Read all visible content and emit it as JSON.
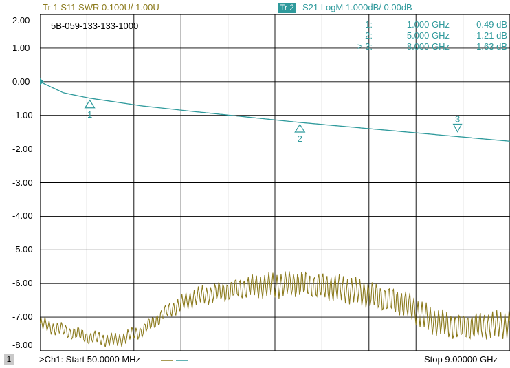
{
  "header": {
    "trace1": "Tr 1  S11 SWR 0.100U/  1.00U",
    "trace2_tag": "Tr 2",
    "trace2": "S21 LogM 1.000dB/  0.00dB"
  },
  "note": "5B-059-133-133-1000",
  "markers": [
    {
      "id": "1:",
      "freq": "1.000 GHz",
      "value": "-0.49 dB"
    },
    {
      "id": "2:",
      "freq": "5.000 GHz",
      "value": "-1.21 dB"
    },
    {
      "id": "> 3:",
      "freq": "8.000 GHz",
      "value": "-1.63 dB"
    }
  ],
  "footer": {
    "channel": "1",
    "start": ">Ch1: Start  50.0000 MHz",
    "stop": "Stop  9.00000 GHz"
  },
  "colors": {
    "s21": "#2f9a9c",
    "s11": "#8b7a1c",
    "grid": "#000000"
  },
  "chart_data": {
    "type": "line",
    "xlim": [
      0.05,
      9.0
    ],
    "ylim": [
      -8.0,
      2.0
    ],
    "yticks": [
      "2.00",
      "1.00",
      "0.00",
      "-1.00",
      "-2.00",
      "-3.00",
      "-4.00",
      "-5.00",
      "-6.00",
      "-7.00",
      "-8.00"
    ],
    "grid": true,
    "series": [
      {
        "name": "S21",
        "x": [
          0.05,
          0.5,
          1.0,
          2.0,
          3.0,
          4.0,
          5.0,
          6.0,
          7.0,
          8.0,
          9.0
        ],
        "y": [
          0.0,
          -0.33,
          -0.49,
          -0.72,
          -0.89,
          -1.05,
          -1.21,
          -1.35,
          -1.49,
          -1.63,
          -1.77
        ]
      },
      {
        "name": "S11",
        "x": [
          0.05,
          1.0,
          1.5,
          2.0,
          2.5,
          3.0,
          4.0,
          5.0,
          6.0,
          7.0,
          7.5,
          8.0,
          9.0
        ],
        "y": [
          1.08,
          1.04,
          1.03,
          1.06,
          1.12,
          1.16,
          1.19,
          1.2,
          1.18,
          1.14,
          1.09,
          1.07,
          1.08
        ]
      }
    ],
    "markers": [
      {
        "label": "1",
        "x": 1.0,
        "y": -0.49
      },
      {
        "label": "2",
        "x": 5.0,
        "y": -1.21
      },
      {
        "label": "3",
        "x": 8.0,
        "y": -1.63
      }
    ]
  }
}
